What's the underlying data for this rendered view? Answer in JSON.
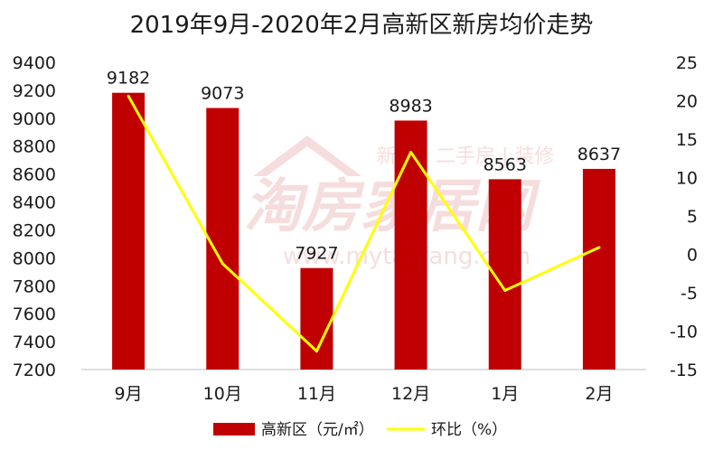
{
  "chart_data": {
    "type": "bar",
    "title": "2019年9月-2020年2月高新区新房均价走势",
    "categories": [
      "9月",
      "10月",
      "11月",
      "12月",
      "1月",
      "2月"
    ],
    "series": [
      {
        "name": "高新区（元/㎡）",
        "type": "bar",
        "axis": "left",
        "color": "#C00000",
        "values": [
          9182,
          9073,
          7927,
          8983,
          8563,
          8637
        ],
        "data_labels": [
          "9182",
          "9073",
          "7927",
          "8983",
          "8563",
          "8637"
        ]
      },
      {
        "name": "环比（%）",
        "type": "line",
        "axis": "right",
        "color": "#FFFF00",
        "values": [
          20.6,
          -1.2,
          -12.6,
          13.3,
          -4.7,
          0.9
        ]
      }
    ],
    "y_left": {
      "min": 7200,
      "max": 9400,
      "step": 200,
      "ticks": [
        "7200",
        "7400",
        "7600",
        "7800",
        "8000",
        "8200",
        "8400",
        "8600",
        "8800",
        "9000",
        "9200",
        "9400"
      ]
    },
    "y_right": {
      "min": -15,
      "max": 25,
      "step": 5,
      "ticks": [
        "-15",
        "-10",
        "-5",
        "0",
        "5",
        "10",
        "15",
        "20",
        "25"
      ]
    },
    "legend_position": "bottom",
    "grid": false
  },
  "watermark": {
    "brand": "淘房家居网",
    "tagline": "新房 | 二手房 | 装修",
    "url": "www.mytaofang.com"
  }
}
